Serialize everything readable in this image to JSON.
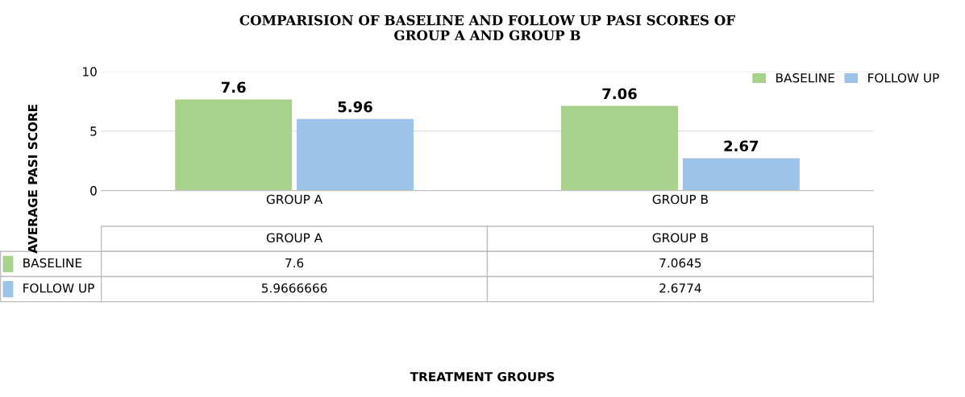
{
  "chart_data": [
    {
      "type": "bar",
      "title": "COMPARISION OF BASELINE AND FOLLOW UP PASI SCORES OF\nGROUP A AND GROUP B",
      "ylabel": "AVERAGE PASI SCORE",
      "categories": [
        "GROUP A",
        "GROUP B"
      ],
      "series": [
        {
          "name": "BASELINE",
          "color": "#a9d18e",
          "values": [
            7.6,
            7.06
          ]
        },
        {
          "name": "FOLLOW UP",
          "color": "#9dc3e6",
          "values": [
            5.96,
            2.67
          ]
        }
      ],
      "ylim": [
        0,
        10
      ],
      "yticks": [
        0,
        5,
        10
      ],
      "grid": "y",
      "legend": "top right",
      "data_labels": true,
      "annotations": [
        "TREATMENT GROUPS"
      ]
    },
    {
      "type": "other",
      "categories": [
        "GROUP A",
        "GROUP B"
      ],
      "series": [
        {
          "name": "BASELINE",
          "values": [
            7.6,
            7.0645
          ]
        },
        {
          "name": "FOLLOW UP",
          "values": [
            5.9666666,
            2.6774
          ]
        }
      ],
      "data_labels": true
    }
  ]
}
